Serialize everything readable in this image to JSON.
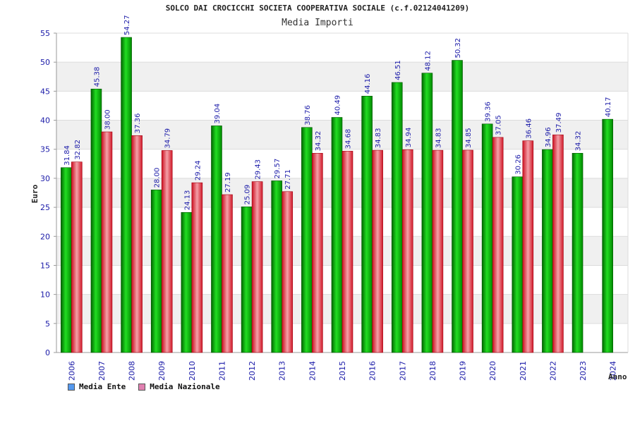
{
  "chart_data": {
    "type": "bar",
    "title": "SOLCO DAI CROCICCHI SOCIETA COOPERATIVA SOCIALE (c.f.02124041209)",
    "subtitle": "Media Importi",
    "xlabel": "Anno",
    "ylabel": "Euro",
    "ylim": [
      0,
      55
    ],
    "yticks": [
      0,
      5,
      10,
      15,
      20,
      25,
      30,
      35,
      40,
      45,
      50,
      55
    ],
    "grid": true,
    "legend_position": "bottom-left",
    "categories": [
      "2006",
      "2007",
      "2008",
      "2009",
      "2010",
      "2011",
      "2012",
      "2013",
      "2014",
      "2015",
      "2016",
      "2017",
      "2018",
      "2019",
      "2020",
      "2021",
      "2022",
      "2023",
      "2024"
    ],
    "series": [
      {
        "name": "Media Ente",
        "color": "#11b411",
        "legend_color": "#5599ee",
        "values": [
          31.84,
          45.38,
          54.27,
          28.0,
          24.13,
          39.04,
          25.09,
          29.57,
          38.76,
          40.49,
          44.16,
          46.51,
          48.12,
          50.32,
          39.36,
          30.26,
          34.96,
          34.32,
          40.17
        ],
        "labels": [
          "31.84",
          "45.38",
          "54.27",
          "28.00",
          "24.13",
          "39.04",
          "25.09",
          "29.57",
          "38.76",
          "40.49",
          "44.16",
          "46.51",
          "48.12",
          "50.32",
          "39.36",
          "30.26",
          "34.96",
          "34.32",
          "40.17"
        ]
      },
      {
        "name": "Media Nazionale",
        "color": "#e8303a",
        "legend_color": "#e080b0",
        "values": [
          32.82,
          38.0,
          37.36,
          34.79,
          29.24,
          27.19,
          29.43,
          27.71,
          34.32,
          34.68,
          34.83,
          34.94,
          34.83,
          34.85,
          37.05,
          36.46,
          37.49,
          null,
          null
        ],
        "labels": [
          "32.82",
          "38.00",
          "37.36",
          "34.79",
          "29.24",
          "27.19",
          "29.43",
          "27.71",
          "34.32",
          "34.68",
          "34.83",
          "34.94",
          "34.83",
          "34.85",
          "37.05",
          "36.46",
          "37.49",
          "",
          ""
        ]
      }
    ]
  }
}
